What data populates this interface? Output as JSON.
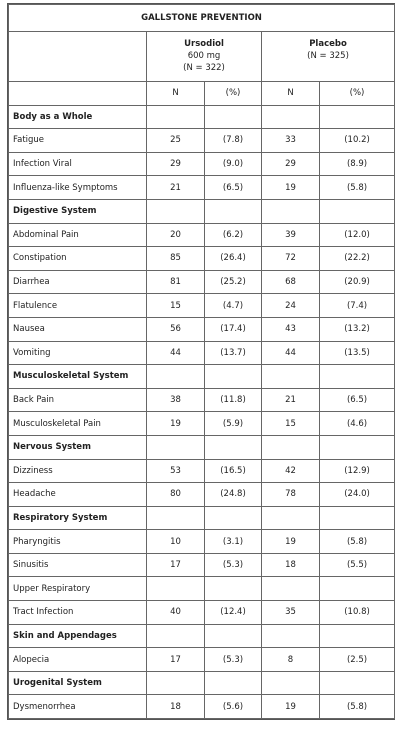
{
  "table": {
    "title": "GALLSTONE PREVENTION",
    "groups": [
      [
        "Ursodiol",
        "600 mg",
        "(N = 322)"
      ],
      [
        "Placebo",
        "(N = 325)"
      ]
    ],
    "subheader": [
      "N",
      "(%)",
      "N",
      "(%)"
    ],
    "rows": [
      {
        "section": "Body as a Whole"
      },
      {
        "cells": [
          "Fatigue",
          "25",
          "(7.8)",
          "33",
          "(10.2)"
        ]
      },
      {
        "cells": [
          "Infection Viral",
          "29",
          "(9.0)",
          "29",
          "(8.9)"
        ]
      },
      {
        "cells": [
          "Influenza-like Symptoms",
          "21",
          "(6.5)",
          "19",
          "(5.8)"
        ]
      },
      {
        "section": "Digestive System"
      },
      {
        "cells": [
          "Abdominal Pain",
          "20",
          "(6.2)",
          "39",
          "(12.0)"
        ]
      },
      {
        "cells": [
          "Constipation",
          "85",
          "(26.4)",
          "72",
          "(22.2)"
        ]
      },
      {
        "cells": [
          "Diarrhea",
          "81",
          "(25.2)",
          "68",
          "(20.9)"
        ]
      },
      {
        "cells": [
          "Flatulence",
          "15",
          "(4.7)",
          "24",
          "(7.4)"
        ]
      },
      {
        "cells": [
          "Nausea",
          "56",
          "(17.4)",
          "43",
          "(13.2)"
        ]
      },
      {
        "cells": [
          "Vomiting",
          "44",
          "(13.7)",
          "44",
          "(13.5)"
        ]
      },
      {
        "section": "Musculoskeletal System"
      },
      {
        "cells": [
          "Back Pain",
          "38",
          "(11.8)",
          "21",
          "(6.5)"
        ]
      },
      {
        "cells": [
          "Musculoskeletal Pain",
          "19",
          "(5.9)",
          "15",
          "(4.6)"
        ]
      },
      {
        "section": "Nervous System"
      },
      {
        "cells": [
          "Dizziness",
          "53",
          "(16.5)",
          "42",
          "(12.9)"
        ]
      },
      {
        "cells": [
          "Headache",
          "80",
          "(24.8)",
          "78",
          "(24.0)"
        ]
      },
      {
        "section": "Respiratory System"
      },
      {
        "cells": [
          "Pharyngitis",
          "10",
          "(3.1)",
          "19",
          "(5.8)"
        ]
      },
      {
        "cells": [
          "Sinusitis",
          "17",
          "(5.3)",
          "18",
          "(5.5)"
        ]
      },
      {
        "cells": [
          "Upper Respiratory"
        ]
      },
      {
        "cells": [
          "Tract Infection",
          "40",
          "(12.4)",
          "35",
          "(10.8)"
        ]
      },
      {
        "section": "Skin and Appendages"
      },
      {
        "cells": [
          "Alopecia",
          "17",
          "(5.3)",
          "8",
          "(2.5)"
        ]
      },
      {
        "section": "Urogenital System"
      },
      {
        "cells": [
          "Dysmenorrhea",
          "18",
          "(5.6)",
          "19",
          "(5.8)"
        ]
      }
    ]
  }
}
